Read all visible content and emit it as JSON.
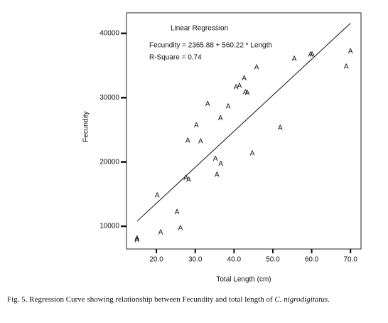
{
  "chart_data": {
    "type": "scatter",
    "title": "Linear Regression",
    "equation": "Fecundity = 2365.88 + 560.22 * Length",
    "r_square": "R-Square = 0.74",
    "x_label": "Total Length (cm)",
    "y_label": "Fecundity",
    "marker": "A",
    "color": "#111111",
    "x": [
      15,
      15,
      21.1,
      26.2,
      25.3,
      20.2,
      27.6,
      28.3,
      35.6,
      36.6,
      35.2,
      44.7,
      28.1,
      31.4,
      30.3,
      51.9,
      36.5,
      33.2,
      38.5,
      42.9,
      43.4,
      40.5,
      41.4,
      42.6,
      45.8,
      55.5,
      59.7,
      60.1,
      68.9,
      70
    ],
    "values": [
      8100,
      7800,
      9000,
      9700,
      12200,
      14800,
      17500,
      17200,
      18000,
      19700,
      20500,
      21300,
      23300,
      23200,
      25700,
      25300,
      26800,
      29000,
      28600,
      30800,
      30700,
      31600,
      31800,
      33000,
      34700,
      36000,
      36700,
      36700,
      34800,
      37200
    ],
    "fit": {
      "intercept": 2365.88,
      "slope": 560.22,
      "x_range": [
        15,
        70
      ]
    },
    "xlim": [
      12.3,
      72.7
    ],
    "ylim": [
      6460,
      43200
    ],
    "xticks": [
      {
        "value": 20,
        "label": "20.0"
      },
      {
        "value": 30,
        "label": "30.0"
      },
      {
        "value": 40,
        "label": "40.0"
      },
      {
        "value": 50,
        "label": "50.0"
      },
      {
        "value": 60,
        "label": "60.0"
      },
      {
        "value": 70,
        "label": "70.0"
      }
    ],
    "yticks": [
      10000,
      20000,
      30000,
      40000
    ],
    "grid": false,
    "caption": {
      "text": "Fig. 5. Regression Curve showing relationship between Fecundity and total length of ",
      "species": "C. nigrodigitatus",
      "end": "."
    }
  }
}
